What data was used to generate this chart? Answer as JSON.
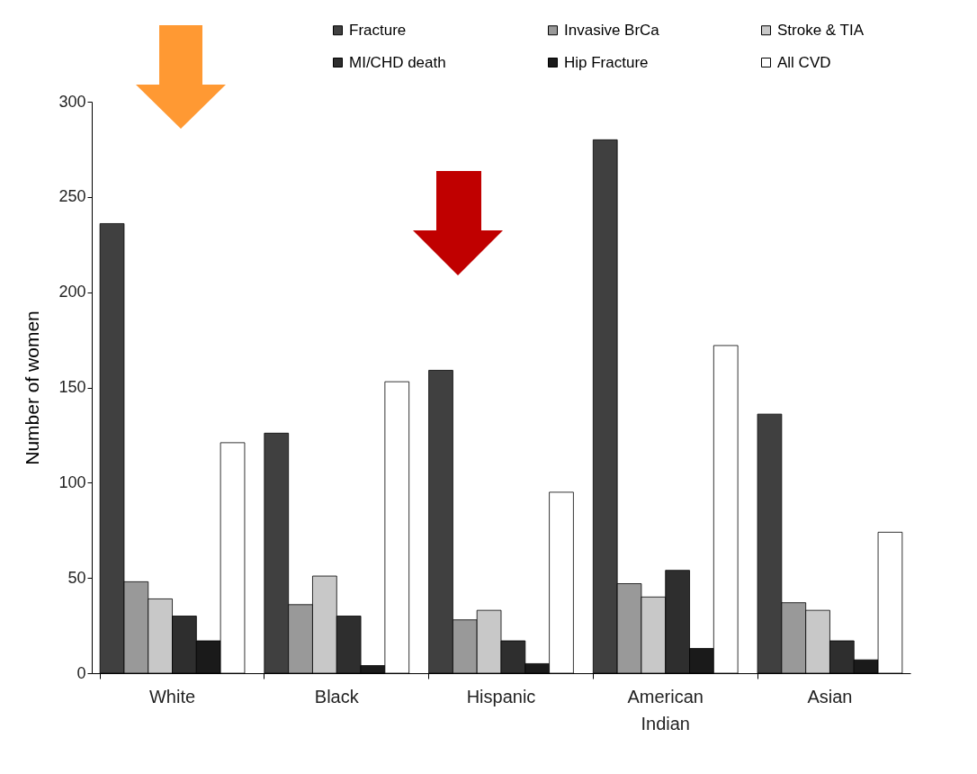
{
  "chart_data": {
    "type": "bar",
    "ylabel": "Number of women",
    "categories": [
      "White",
      "Black",
      "Hispanic",
      "American Indian",
      "Asian"
    ],
    "series": [
      {
        "name": "Fracture",
        "color": "#404040",
        "values": [
          236,
          126,
          159,
          280,
          136
        ]
      },
      {
        "name": "Invasive BrCa",
        "color": "#999999",
        "values": [
          48,
          36,
          28,
          47,
          37
        ]
      },
      {
        "name": "Stroke & TIA",
        "color": "#c8c8c8",
        "values": [
          39,
          51,
          33,
          40,
          33
        ]
      },
      {
        "name": "MI/CHD death",
        "color": "#2e2e2e",
        "values": [
          30,
          30,
          17,
          54,
          17
        ]
      },
      {
        "name": "Hip Fracture",
        "color": "#1a1a1a",
        "values": [
          17,
          4,
          5,
          13,
          7
        ]
      },
      {
        "name": "All CVD",
        "color": "#ffffff",
        "values": [
          121,
          153,
          95,
          172,
          74
        ]
      }
    ],
    "ylim": [
      0,
      300
    ],
    "yticks": [
      0,
      50,
      100,
      150,
      200,
      250,
      300
    ],
    "grid": false,
    "legend": "top"
  }
}
